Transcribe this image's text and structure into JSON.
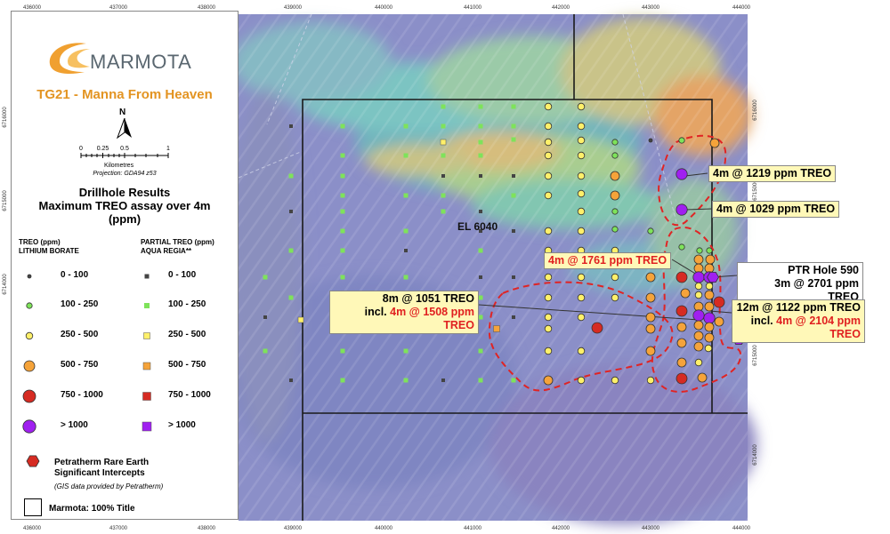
{
  "header": {
    "logo_text": "MARMOTA",
    "title": "TG21 - Manna From Heaven",
    "north_label": "N",
    "scale_ticks": [
      "0",
      "0.25",
      "0.5",
      "1"
    ],
    "scale_unit": "Kilometres",
    "projection": "Projection: GDA94 z53"
  },
  "legend": {
    "title_lines": [
      "Drillhole Results",
      "Maximum TREO assay over 4m",
      "(ppm)"
    ],
    "col1_head_lines": [
      "TREO (ppm)",
      "LITHIUM BORATE"
    ],
    "col2_head_lines": [
      "PARTIAL TREO (ppm)",
      "AQUA REGIA**"
    ],
    "classes": [
      {
        "label": "0 - 100",
        "color": "#444444"
      },
      {
        "label": "100 - 250",
        "color": "#7ee35a"
      },
      {
        "label": "250 - 500",
        "color": "#fff06a"
      },
      {
        "label": "500 - 750",
        "color": "#f5a33a"
      },
      {
        "label": "750 - 1000",
        "color": "#d62b22"
      },
      {
        "label": "> 1000",
        "color": "#a020f0"
      }
    ],
    "petratherm_lines": [
      "Petratherm Rare Earth",
      "Significant Intercepts"
    ],
    "petratherm_note": "(GIS data provided by Petratherm)",
    "title_area_label": "Marmota: 100% Title"
  },
  "axis": {
    "x_ticks": [
      "436000",
      "437000",
      "438000",
      "439000",
      "440000",
      "441000",
      "442000",
      "443000",
      "444000"
    ],
    "y_ticks": [
      "6716000",
      "6715000",
      "6714000"
    ],
    "y_ticks_partial": [
      "6716000",
      "6715000",
      "6715000",
      "6714000"
    ]
  },
  "map": {
    "tenement_label": "EL 6040"
  },
  "callouts": {
    "c1": {
      "text": "4m @ 1219 ppm TREO"
    },
    "c2": {
      "text": "4m @ 1029 ppm TREO"
    },
    "c3": {
      "text": "4m @ 1761 ppm TREO"
    },
    "c4": {
      "line1": "PTR Hole 590",
      "line2": "3m @ 2701 ppm TREO"
    },
    "c5": {
      "line1": "8m @ 1051 TREO",
      "line2_prefix": "incl. ",
      "line2_red": "4m @ 1508 ppm TREO"
    },
    "c6": {
      "line1": "12m @ 1122 ppm TREO",
      "line2_prefix": "incl. ",
      "line2_red": "4m @ 2104 ppm TREO"
    }
  }
}
